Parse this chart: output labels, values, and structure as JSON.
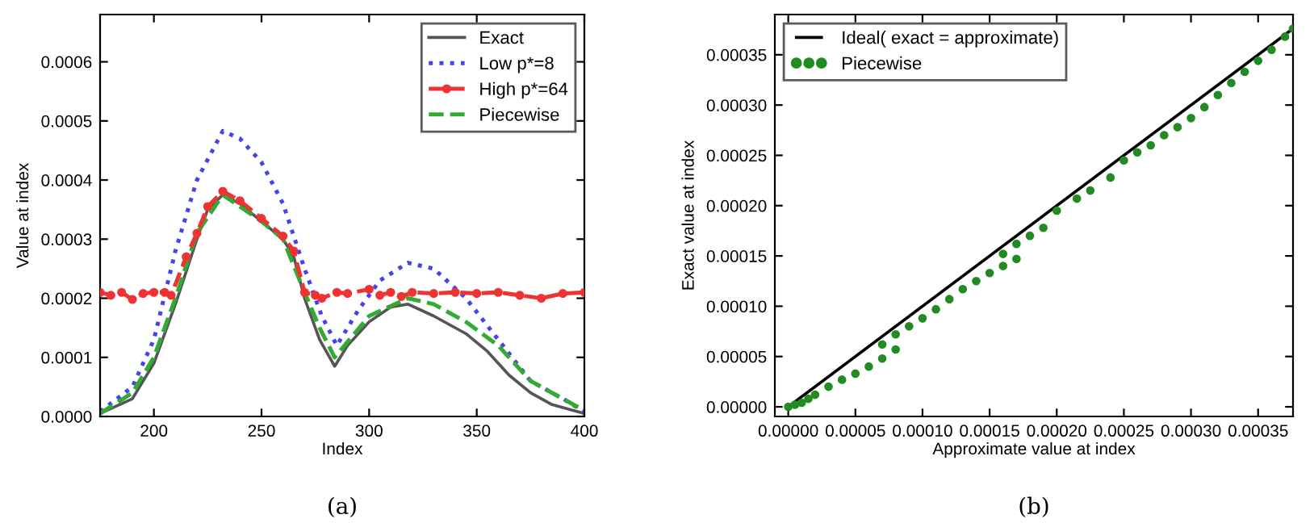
{
  "chart_data": [
    {
      "type": "line",
      "xlabel": "Index",
      "ylabel": "Value at index",
      "xlim": [
        175,
        400
      ],
      "ylim": [
        0,
        0.00068
      ],
      "xticks": [
        200,
        250,
        300,
        350,
        400
      ],
      "yticks": [
        {
          "value": 0,
          "label": "0.0000"
        },
        {
          "value": 0.0001,
          "label": "0.0001"
        },
        {
          "value": 0.0002,
          "label": "0.0002"
        },
        {
          "value": 0.0003,
          "label": "0.0003"
        },
        {
          "value": 0.0004,
          "label": "0.0004"
        },
        {
          "value": 0.0005,
          "label": "0.0005"
        },
        {
          "value": 0.0006,
          "label": "0.0006"
        }
      ],
      "grid": false,
      "legend": "top right",
      "annotations": [
        "(a)"
      ],
      "series": [
        {
          "name": "Exact",
          "color": "#555555",
          "line_style": "solid",
          "x": [
            175,
            190,
            200,
            210,
            220,
            225,
            232,
            240,
            250,
            260,
            265,
            270,
            277,
            284,
            290,
            300,
            310,
            318,
            330,
            345,
            355,
            365,
            375,
            385,
            400
          ],
          "values": [
            5e-06,
            3e-05,
            9e-05,
            0.00019,
            0.0003,
            0.00035,
            0.000375,
            0.00036,
            0.00033,
            0.0003,
            0.00027,
            0.0002,
            0.00013,
            8.5e-05,
            0.00012,
            0.00016,
            0.000185,
            0.00019,
            0.00017,
            0.00014,
            0.00011,
            7e-05,
            4e-05,
            2e-05,
            5e-06
          ]
        },
        {
          "name": "Low p*=8",
          "color": "#4444ee",
          "line_style": "dotted",
          "x": [
            175,
            190,
            200,
            210,
            220,
            232,
            240,
            250,
            260,
            270,
            278,
            285,
            295,
            305,
            318,
            330,
            345,
            360,
            375,
            390,
            400
          ],
          "values": [
            8e-06,
            5e-05,
            0.00013,
            0.00028,
            0.0004,
            0.000483,
            0.00047,
            0.00043,
            0.00036,
            0.00025,
            0.00017,
            0.00012,
            0.00018,
            0.00023,
            0.00026,
            0.00025,
            0.0002,
            0.00013,
            6e-05,
            3e-05,
            8e-06
          ]
        },
        {
          "name": "High p*=64",
          "color": "#ee3333",
          "line_style": "dashed",
          "marker": "circle",
          "x": [
            175,
            180,
            185,
            190,
            195,
            200,
            205,
            208,
            215,
            220,
            225,
            232,
            240,
            250,
            260,
            265,
            270,
            275,
            278,
            285,
            290,
            300,
            305,
            310,
            315,
            320,
            330,
            340,
            350,
            360,
            370,
            380,
            390,
            400
          ],
          "values": [
            0.00021,
            0.000205,
            0.00021,
            0.000198,
            0.000208,
            0.00021,
            0.00021,
            0.000205,
            0.00027,
            0.00031,
            0.000355,
            0.000381,
            0.000365,
            0.000335,
            0.000305,
            0.00028,
            0.00021,
            0.000205,
            0.0002,
            0.00021,
            0.000208,
            0.000215,
            0.000205,
            0.00021,
            0.000203,
            0.00021,
            0.000208,
            0.00021,
            0.000208,
            0.00021,
            0.000205,
            0.0002,
            0.000208,
            0.00021
          ]
        },
        {
          "name": "Piecewise",
          "color": "#33aa33",
          "line_style": "dashed",
          "x": [
            175,
            190,
            200,
            210,
            220,
            232,
            250,
            260,
            270,
            277,
            284,
            300,
            318,
            330,
            345,
            360,
            375,
            390,
            400
          ],
          "values": [
            5e-06,
            4e-05,
            0.0001,
            0.0002,
            0.00031,
            0.000375,
            0.00033,
            0.0003,
            0.00021,
            0.00015,
            0.0001,
            0.00017,
            0.0002,
            0.00019,
            0.00016,
            0.00012,
            6e-05,
            3e-05,
            1e-05
          ]
        }
      ]
    },
    {
      "type": "scatter",
      "xlabel": "Approximate value at index",
      "ylabel": "Exact value at index",
      "xlim": [
        -1e-05,
        0.000376
      ],
      "ylim": [
        -9.6e-06,
        0.00039
      ],
      "xticks": [
        {
          "value": 0,
          "label": "0.00000"
        },
        {
          "value": 5e-05,
          "label": "0.00005"
        },
        {
          "value": 0.0001,
          "label": "0.00010"
        },
        {
          "value": 0.00015,
          "label": "0.00015"
        },
        {
          "value": 0.0002,
          "label": "0.00020"
        },
        {
          "value": 0.00025,
          "label": "0.00025"
        },
        {
          "value": 0.0003,
          "label": "0.00030"
        },
        {
          "value": 0.00035,
          "label": "0.00035"
        }
      ],
      "yticks": [
        {
          "value": 0,
          "label": "0.00000"
        },
        {
          "value": 5e-05,
          "label": "0.00005"
        },
        {
          "value": 0.0001,
          "label": "0.00010"
        },
        {
          "value": 0.00015,
          "label": "0.00015"
        },
        {
          "value": 0.0002,
          "label": "0.00020"
        },
        {
          "value": 0.00025,
          "label": "0.00025"
        },
        {
          "value": 0.0003,
          "label": "0.00030"
        },
        {
          "value": 0.00035,
          "label": "0.00035"
        }
      ],
      "grid": false,
      "legend": "top left",
      "annotations": [
        "(b)"
      ],
      "series": [
        {
          "name": "Ideal( exact = approximate)",
          "type": "line",
          "color": "#000000",
          "line_style": "solid",
          "x": [
            0,
            0.000376
          ],
          "values": [
            0,
            0.000376
          ]
        },
        {
          "name": "Piecewise",
          "color": "#228B22",
          "marker": "circle",
          "x": [
            0,
            5e-06,
            1e-05,
            1.5e-05,
            2e-05,
            3e-05,
            4e-05,
            5e-05,
            6e-05,
            7e-05,
            8e-05,
            7e-05,
            8e-05,
            9e-05,
            0.0001,
            0.00011,
            0.00012,
            0.00013,
            0.00014,
            0.00015,
            0.00016,
            0.00017,
            0.00016,
            0.00017,
            0.00018,
            0.00019,
            0.0002,
            0.000215,
            0.000225,
            0.00024,
            0.00025,
            0.00026,
            0.00027,
            0.00028,
            0.00029,
            0.0003,
            0.00031,
            0.00032,
            0.00033,
            0.00034,
            0.00035,
            0.00036,
            0.00037,
            0.000376
          ],
          "values": [
            0,
            2e-06,
            4e-06,
            8e-06,
            1.2e-05,
            2e-05,
            2.7e-05,
            3.3e-05,
            4e-05,
            4.8e-05,
            5.7e-05,
            6.2e-05,
            7.2e-05,
            8e-05,
            8.8e-05,
            9.7e-05,
            0.000107,
            0.000117,
            0.000125,
            0.000133,
            0.00014,
            0.000147,
            0.000152,
            0.000162,
            0.00017,
            0.000178,
            0.000195,
            0.000207,
            0.000215,
            0.000228,
            0.000245,
            0.000253,
            0.00026,
            0.00027,
            0.000278,
            0.000287,
            0.000298,
            0.00031,
            0.000322,
            0.000333,
            0.000344,
            0.000355,
            0.000368,
            0.000376
          ]
        }
      ]
    }
  ]
}
